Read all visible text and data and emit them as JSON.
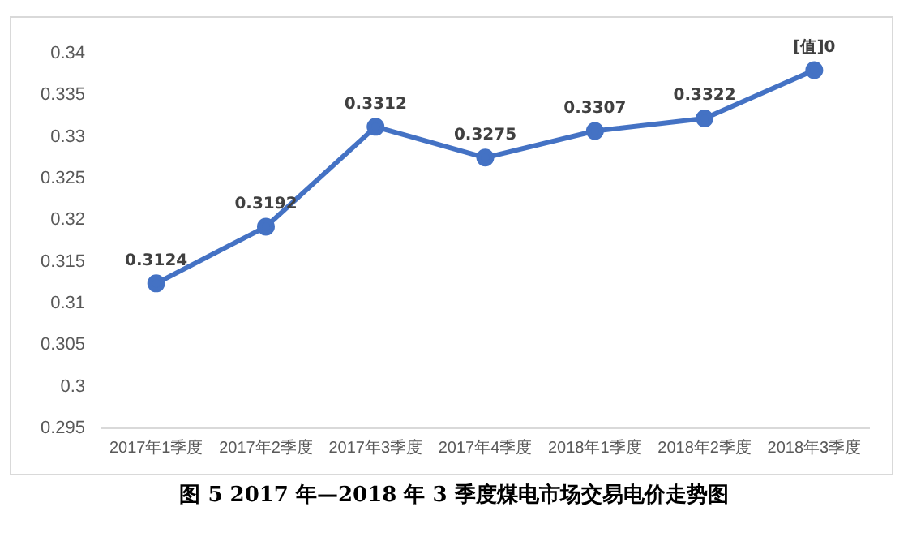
{
  "chart_data": {
    "type": "line",
    "title": "图 5 2017 年—2018 年 3 季度煤电市场交易电价走势图",
    "categories": [
      "2017年1季度",
      "2017年2季度",
      "2017年3季度",
      "2017年4季度",
      "2018年1季度",
      "2018年2季度",
      "2018年3季度"
    ],
    "series": [
      {
        "color": "#4472c4",
        "values": [
          0.3124,
          0.3192,
          0.3312,
          0.3275,
          0.3307,
          0.3322,
          0.338
        ],
        "value_labels": [
          "0.3124",
          "0.3192",
          "0.3312",
          "0.3275",
          "0.3307",
          "0.3322",
          "[值]0"
        ]
      }
    ],
    "ylim": [
      0.295,
      0.34
    ],
    "yticks": [
      0.295,
      0.3,
      0.305,
      0.31,
      0.315,
      0.32,
      0.325,
      0.33,
      0.335,
      0.34
    ],
    "grid": false,
    "legend": false,
    "marker": "circle",
    "line_style": "solid"
  }
}
